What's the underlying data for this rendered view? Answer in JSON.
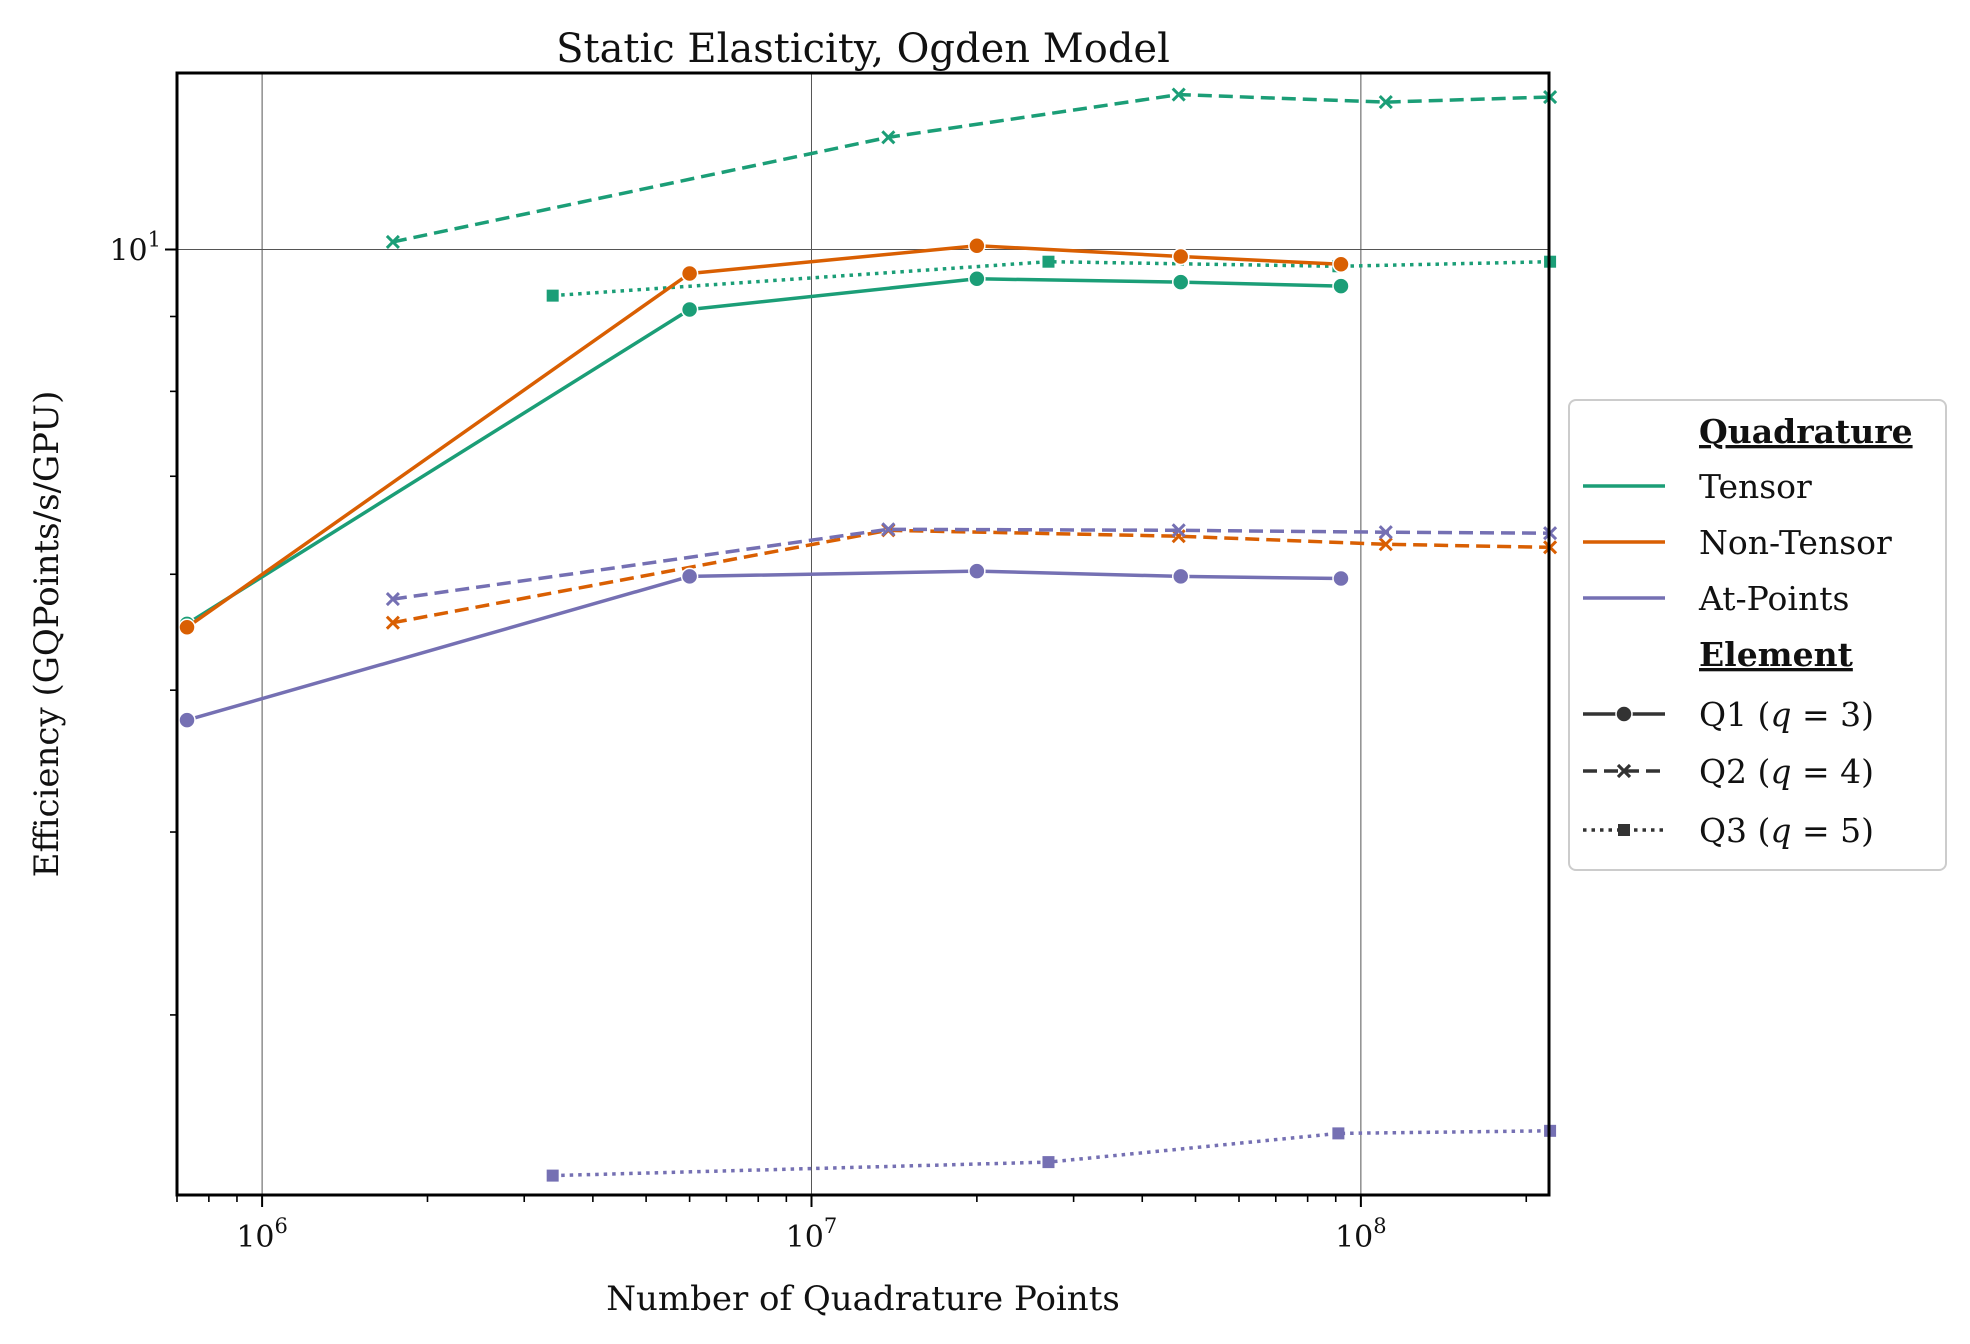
{
  "chart_data": {
    "type": "line",
    "title": "Static Elasticity, Ogden Model",
    "xlabel": "Number of Quadrature Points",
    "ylabel": "Efficiency (GQPoints/s/GPU)",
    "xscale": "log",
    "yscale": "log",
    "xlim": [
      700000,
      220000000
    ],
    "ylim": [
      2.26,
      13.2
    ],
    "x_ticks": [
      {
        "value": 1000000,
        "base": "10",
        "exp": "6"
      },
      {
        "value": 10000000,
        "base": "10",
        "exp": "7"
      },
      {
        "value": 100000000,
        "base": "10",
        "exp": "8"
      }
    ],
    "y_ticks": [
      {
        "value": 10,
        "base": "10",
        "exp": "1"
      }
    ],
    "grid": true,
    "legend_position": "right, outside plot",
    "legend": {
      "quadrature_title": "Quadrature",
      "element_title": "Element",
      "quadrature": [
        {
          "name": "Tensor",
          "color": "#1b9e77"
        },
        {
          "name": "Non-Tensor",
          "color": "#d95f02"
        },
        {
          "name": "At-Points",
          "color": "#7570b3"
        }
      ],
      "element": [
        {
          "prefix": "Q1 (",
          "var": "q",
          "suffix": " = 3)",
          "marker": "circle",
          "dash": "solid"
        },
        {
          "prefix": "Q2 (",
          "var": "q",
          "suffix": " = 4)",
          "marker": "x",
          "dash": "dashed"
        },
        {
          "prefix": "Q3 (",
          "var": "q",
          "suffix": " = 5)",
          "marker": "square",
          "dash": "dotted"
        }
      ]
    },
    "series": [
      {
        "quadrature": "Tensor",
        "element": "Q1",
        "color": "#1b9e77",
        "dash": "solid",
        "marker": "circle",
        "x": [
          730000,
          6000000,
          20000000,
          47000000,
          92000000
        ],
        "y": [
          5.55,
          9.1,
          9.55,
          9.5,
          9.44
        ]
      },
      {
        "quadrature": "Tensor",
        "element": "Q2",
        "color": "#1b9e77",
        "dash": "dashed",
        "marker": "x",
        "x": [
          1730000,
          13800000,
          46600000,
          111000000,
          221000000
        ],
        "y": [
          10.12,
          11.93,
          12.76,
          12.61,
          12.71
        ]
      },
      {
        "quadrature": "Tensor",
        "element": "Q3",
        "color": "#1b9e77",
        "dash": "dotted",
        "marker": "square",
        "x": [
          3380000,
          27000000,
          91000000,
          221000000
        ],
        "y": [
          9.3,
          9.81,
          9.74,
          9.81
        ]
      },
      {
        "quadrature": "Non-Tensor",
        "element": "Q1",
        "color": "#d95f02",
        "dash": "solid",
        "marker": "circle",
        "x": [
          730000,
          6000000,
          20000000,
          47000000,
          92000000
        ],
        "y": [
          5.52,
          9.63,
          10.06,
          9.89,
          9.77
        ]
      },
      {
        "quadrature": "Non-Tensor",
        "element": "Q2",
        "color": "#d95f02",
        "dash": "dashed",
        "marker": "x",
        "x": [
          1730000,
          13800000,
          46600000,
          111000000,
          221000000
        ],
        "y": [
          5.56,
          6.43,
          6.37,
          6.29,
          6.26
        ]
      },
      {
        "quadrature": "At-Points",
        "element": "Q1",
        "color": "#7570b3",
        "dash": "solid",
        "marker": "circle",
        "x": [
          730000,
          6000000,
          20000000,
          47000000,
          92000000
        ],
        "y": [
          4.77,
          5.98,
          6.03,
          5.98,
          5.96
        ]
      },
      {
        "quadrature": "At-Points",
        "element": "Q2",
        "color": "#7570b3",
        "dash": "dashed",
        "marker": "x",
        "x": [
          1730000,
          13800000,
          46600000,
          111000000,
          221000000
        ],
        "y": [
          5.77,
          6.44,
          6.43,
          6.41,
          6.4
        ]
      },
      {
        "quadrature": "At-Points",
        "element": "Q3",
        "color": "#7570b3",
        "dash": "dotted",
        "marker": "square",
        "x": [
          3380000,
          27000000,
          91000000,
          221000000
        ],
        "y": [
          2.33,
          2.38,
          2.49,
          2.5
        ]
      }
    ]
  }
}
